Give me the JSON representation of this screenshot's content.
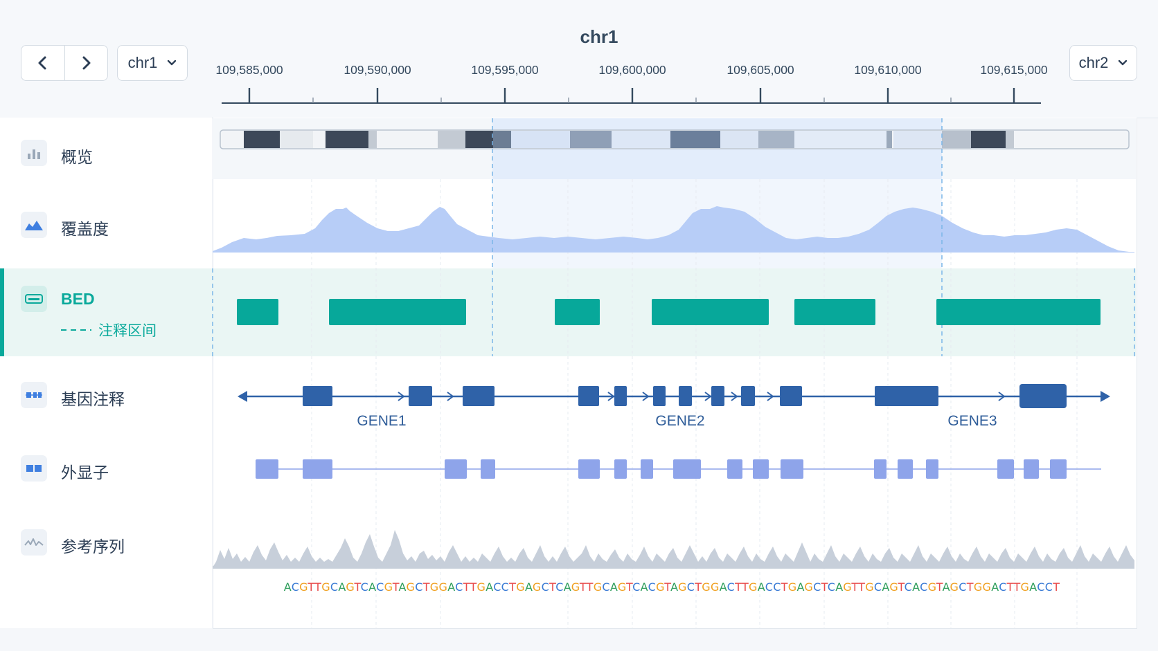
{
  "header": {
    "chromosome_title": "chr1",
    "prev_icon": "chevron-left-icon",
    "next_icon": "chevron-right-icon",
    "current_chr": "chr1",
    "next_chr": "chr2",
    "dropdown_icon": "chevron-down-icon"
  },
  "ruler": {
    "ticks": [
      "109,585,000",
      "109,590,000",
      "109,595,000",
      "109,600,000",
      "109,605,000",
      "109,610,000",
      "109,615,000"
    ]
  },
  "tracks": [
    {
      "name": "概览",
      "icon": "bar-chart-icon"
    },
    {
      "name": "覆盖度",
      "icon": "area-chart-icon"
    },
    {
      "name": "BED",
      "icon": "bed-track-icon",
      "subtitle": "注释区间",
      "active": true,
      "accent": "#0aa99b"
    },
    {
      "name": "基因注释",
      "icon": "gene-annotation-icon"
    },
    {
      "name": "外显子",
      "icon": "exon-icon"
    },
    {
      "name": "参考序列",
      "icon": "sequence-wave-icon"
    }
  ],
  "genes": [
    "GENE1",
    "GENE2",
    "GENE3"
  ],
  "sequence": "ACGTTGCAGTCACGTAGCTGGACTTGACCTGAGCTCAGTTGCAGTCACGTAGCTGGACTTGACCTGAGCTCAGTTGCAGTCACGTAGCTGGACTTGACCT",
  "colors": {
    "A": "#2e9e5b",
    "C": "#3a7bd5",
    "G": "#f0a020",
    "T": "#e84a4a",
    "bed": "#07a89a",
    "gene": "#2f62a8",
    "exon": "#8ea4ea",
    "coverage": "#b7cdf7"
  }
}
